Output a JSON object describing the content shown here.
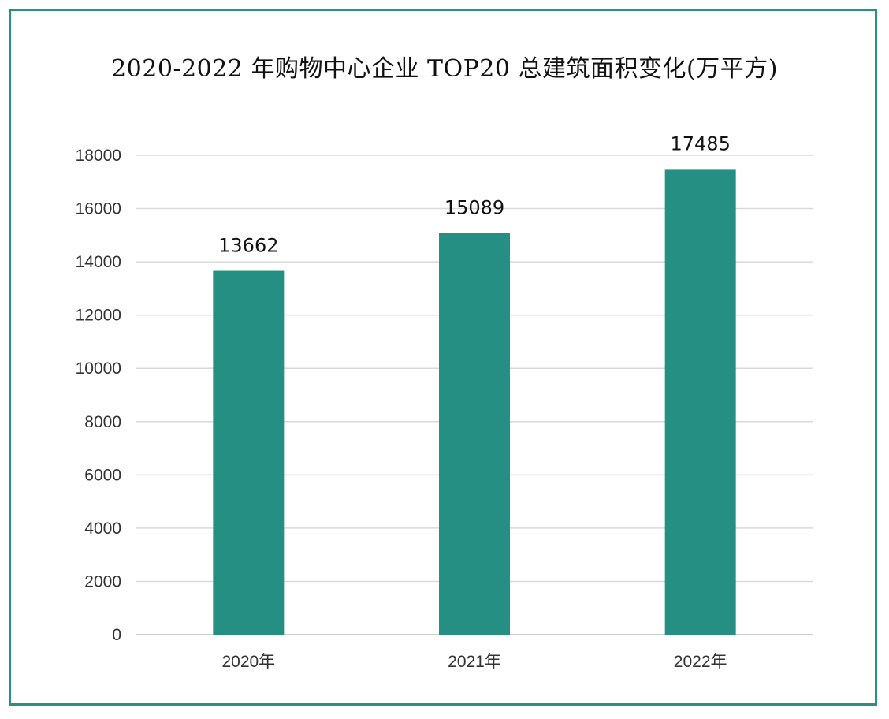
{
  "chart_data": {
    "type": "bar",
    "title": "2020-2022 年购物中心企业 TOP20 总建筑面积变化(万平方)",
    "categories": [
      "2020年",
      "2021年",
      "2022年"
    ],
    "values": [
      13662,
      15089,
      17485
    ],
    "data_labels": [
      "13662",
      "15089",
      "17485"
    ],
    "xlabel": "",
    "ylabel": "",
    "ylim": [
      0,
      18000
    ],
    "yticks": [
      0,
      2000,
      4000,
      6000,
      8000,
      10000,
      12000,
      14000,
      16000,
      18000
    ],
    "grid": true,
    "legend": "none",
    "bar_color": "#258f84",
    "border_color": "#2a8f84"
  }
}
